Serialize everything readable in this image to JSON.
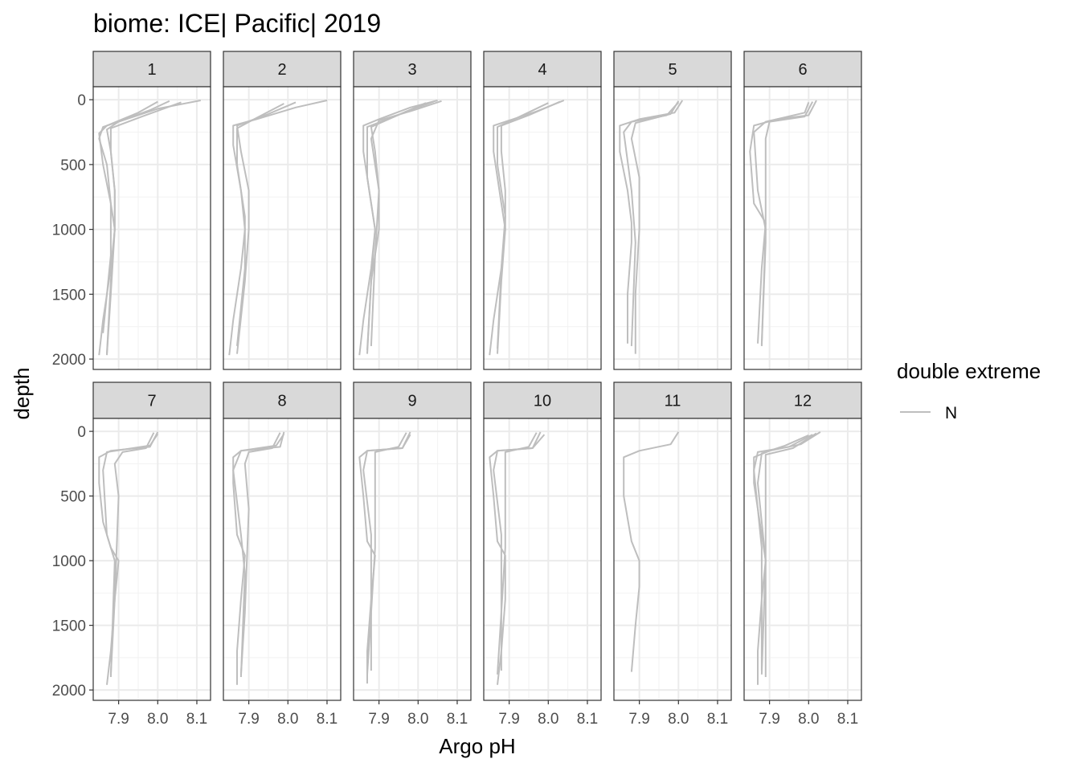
{
  "chart_data": {
    "type": "line",
    "title": "biome: ICE| Pacific| 2019",
    "xlabel": "Argo pH",
    "ylabel": "depth",
    "x_ticks": [
      "7.9",
      "8.0",
      "8.1"
    ],
    "y_ticks": [
      "0",
      "500",
      "1000",
      "1500",
      "2000"
    ],
    "xlim": [
      7.835,
      8.135
    ],
    "ylim": [
      2080,
      -100
    ],
    "y_reversed": true,
    "grid": true,
    "legend": {
      "title": "double extreme",
      "entries": [
        "N"
      ],
      "position": "right",
      "color": "#bebebe"
    },
    "line_color": "#bebebe",
    "facets": [
      {
        "label": "1",
        "profiles": [
          {
            "x": [
              8.03,
              7.98,
              7.9,
              7.86,
              7.85,
              7.87,
              7.88,
              7.89,
              7.88,
              7.86,
              7.85
            ],
            "y": [
              10,
              80,
              170,
              210,
              300,
              500,
              800,
              1000,
              1300,
              1700,
              1970
            ]
          },
          {
            "x": [
              8.11,
              8.0,
              7.9,
              7.87,
              7.88,
              7.89,
              7.89,
              7.88,
              7.87
            ],
            "y": [
              5,
              70,
              170,
              230,
              400,
              700,
              1000,
              1500,
              1970
            ]
          },
          {
            "x": [
              8.06,
              7.96,
              7.88,
              7.88,
              7.89,
              7.89,
              7.88,
              7.87
            ],
            "y": [
              20,
              130,
              220,
              400,
              700,
              1000,
              1400,
              1960
            ]
          },
          {
            "x": [
              8.0,
              7.95,
              7.87,
              7.85,
              7.86,
              7.88,
              7.88,
              7.86
            ],
            "y": [
              15,
              100,
              200,
              260,
              500,
              800,
              1200,
              1800
            ]
          }
        ]
      },
      {
        "label": "2",
        "profiles": [
          {
            "x": [
              8.1,
              8.02,
              7.92,
              7.86,
              7.86,
              7.88,
              7.89,
              7.88,
              7.86,
              7.85
            ],
            "y": [
              5,
              60,
              150,
              200,
              350,
              700,
              1000,
              1300,
              1700,
              1970
            ]
          },
          {
            "x": [
              8.02,
              7.95,
              7.87,
              7.88,
              7.9,
              7.9,
              7.89,
              7.87
            ],
            "y": [
              20,
              110,
              200,
              400,
              700,
              1000,
              1400,
              1960
            ]
          },
          {
            "x": [
              7.99,
              7.92,
              7.87,
              7.87,
              7.89,
              7.89,
              7.87
            ],
            "y": [
              30,
              140,
              220,
              500,
              900,
              1300,
              1900
            ]
          }
        ]
      },
      {
        "label": "3",
        "profiles": [
          {
            "x": [
              8.05,
              7.98,
              7.9,
              7.86,
              7.86,
              7.88,
              7.89,
              7.88,
              7.86,
              7.85
            ],
            "y": [
              5,
              60,
              150,
              200,
              400,
              800,
              1000,
              1300,
              1700,
              1970
            ]
          },
          {
            "x": [
              8.04,
              7.97,
              7.88,
              7.89,
              7.9,
              7.9,
              7.88,
              7.87
            ],
            "y": [
              15,
              90,
              210,
              400,
              700,
              1000,
              1400,
              1960
            ]
          },
          {
            "x": [
              8.02,
              7.94,
              7.87,
              7.87,
              7.89,
              7.88,
              7.87
            ],
            "y": [
              25,
              130,
              210,
              600,
              1000,
              1400,
              1930
            ]
          },
          {
            "x": [
              8.06,
              7.99,
              7.9,
              7.88,
              7.9,
              7.89,
              7.88
            ],
            "y": [
              10,
              80,
              160,
              300,
              700,
              1200,
              1900
            ]
          }
        ]
      },
      {
        "label": "4",
        "profiles": [
          {
            "x": [
              8.04,
              7.97,
              7.9,
              7.86,
              7.86,
              7.88,
              7.89,
              7.88,
              7.86,
              7.85
            ],
            "y": [
              5,
              90,
              160,
              200,
              400,
              800,
              1000,
              1300,
              1700,
              1970
            ]
          },
          {
            "x": [
              8.03,
              7.95,
              7.88,
              7.88,
              7.89,
              7.89,
              7.88,
              7.87
            ],
            "y": [
              15,
              120,
              200,
              400,
              700,
              1000,
              1400,
              1960
            ]
          },
          {
            "x": [
              8.0,
              7.92,
              7.87,
              7.87,
              7.89,
              7.88,
              7.87
            ],
            "y": [
              25,
              140,
              210,
              500,
              900,
              1300,
              1920
            ]
          }
        ]
      },
      {
        "label": "5",
        "profiles": [
          {
            "x": [
              8.01,
              7.99,
              7.9,
              7.85,
              7.85,
              7.87,
              7.88,
              7.88,
              7.87,
              7.87
            ],
            "y": [
              5,
              100,
              150,
              200,
              400,
              700,
              950,
              1100,
              1500,
              1880
            ]
          },
          {
            "x": [
              8.0,
              7.98,
              7.89,
              7.88,
              7.9,
              7.9,
              7.89,
              7.89
            ],
            "y": [
              10,
              110,
              180,
              300,
              600,
              1000,
              1500,
              1960
            ]
          },
          {
            "x": [
              8.0,
              7.97,
              7.88,
              7.86,
              7.88,
              7.89,
              7.88
            ],
            "y": [
              20,
              120,
              170,
              250,
              700,
              1100,
              1900
            ]
          }
        ]
      },
      {
        "label": "6",
        "profiles": [
          {
            "x": [
              8.02,
              8.0,
              7.92,
              7.86,
              7.85,
              7.86,
              7.89,
              7.88,
              7.87
            ],
            "y": [
              5,
              120,
              150,
              200,
              400,
              800,
              950,
              1300,
              1880
            ]
          },
          {
            "x": [
              8.01,
              7.99,
              7.9,
              7.89,
              7.89,
              7.89,
              7.88
            ],
            "y": [
              15,
              130,
              170,
              300,
              700,
              1100,
              1900
            ]
          },
          {
            "x": [
              8.0,
              7.99,
              7.89,
              7.86,
              7.87,
              7.89,
              7.88
            ],
            "y": [
              20,
              100,
              170,
              250,
              700,
              1000,
              1890
            ]
          }
        ]
      },
      {
        "label": "7",
        "profiles": [
          {
            "x": [
              8.0,
              7.98,
              7.88,
              7.85,
              7.85,
              7.86,
              7.88,
              7.9,
              7.89,
              7.88,
              7.87
            ],
            "y": [
              5,
              120,
              150,
              200,
              400,
              700,
              900,
              1000,
              1300,
              1700,
              1960
            ]
          },
          {
            "x": [
              7.99,
              7.97,
              7.91,
              7.89,
              7.9,
              7.89,
              7.88
            ],
            "y": [
              10,
              130,
              160,
              250,
              500,
              1300,
              1880
            ]
          },
          {
            "x": [
              8.0,
              7.98,
              7.87,
              7.86,
              7.87,
              7.89,
              7.88
            ],
            "y": [
              20,
              110,
              160,
              300,
              800,
              1000,
              1900
            ]
          }
        ]
      },
      {
        "label": "8",
        "profiles": [
          {
            "x": [
              7.99,
              7.98,
              7.88,
              7.86,
              7.86,
              7.87,
              7.89,
              7.88,
              7.87,
              7.87
            ],
            "y": [
              5,
              120,
              150,
              200,
              400,
              800,
              960,
              1300,
              1700,
              1960
            ]
          },
          {
            "x": [
              7.98,
              7.96,
              7.9,
              7.89,
              7.9,
              7.89,
              7.88
            ],
            "y": [
              10,
              130,
              160,
              250,
              600,
              1400,
              1880
            ]
          },
          {
            "x": [
              7.99,
              7.97,
              7.88,
              7.86,
              7.88,
              7.89,
              7.88
            ],
            "y": [
              20,
              110,
              150,
              300,
              800,
              1100,
              1900
            ]
          }
        ]
      },
      {
        "label": "9",
        "profiles": [
          {
            "x": [
              7.98,
              7.96,
              7.87,
              7.85,
              7.86,
              7.87,
              7.89,
              7.88,
              7.87,
              7.87
            ],
            "y": [
              5,
              130,
              150,
              200,
              500,
              850,
              960,
              1300,
              1700,
              1950
            ]
          },
          {
            "x": [
              7.97,
              7.95,
              7.89,
              7.89,
              7.89,
              7.88,
              7.87
            ],
            "y": [
              10,
              120,
              160,
              300,
              900,
              1400,
              1880
            ]
          },
          {
            "x": [
              7.98,
              7.96,
              7.87,
              7.86,
              7.88,
              7.88
            ],
            "y": [
              25,
              130,
              150,
              300,
              800,
              1850
            ]
          }
        ]
      },
      {
        "label": "10",
        "profiles": [
          {
            "x": [
              7.98,
              7.96,
              7.87,
              7.85,
              7.86,
              7.87,
              7.89,
              7.89,
              7.88,
              7.87
            ],
            "y": [
              5,
              130,
              150,
              200,
              500,
              850,
              960,
              1300,
              1700,
              1960
            ]
          },
          {
            "x": [
              7.97,
              7.95,
              7.89,
              7.89,
              7.89,
              7.88,
              7.87
            ],
            "y": [
              10,
              120,
              160,
              300,
              900,
              1400,
              1880
            ]
          },
          {
            "x": [
              7.99,
              7.96,
              7.87,
              7.86,
              7.88,
              7.88
            ],
            "y": [
              25,
              130,
              150,
              300,
              800,
              1850
            ]
          }
        ]
      },
      {
        "label": "11",
        "profiles": [
          {
            "x": [
              8.0,
              7.98,
              7.9,
              7.86,
              7.86,
              7.88,
              7.9,
              7.9,
              7.89,
              7.88
            ],
            "y": [
              5,
              100,
              150,
              200,
              500,
              850,
              1000,
              1200,
              1500,
              1860
            ]
          }
        ]
      },
      {
        "label": "12",
        "profiles": [
          {
            "x": [
              8.03,
              7.98,
              7.9,
              7.86,
              7.86,
              7.88,
              7.89,
              7.88,
              7.87,
              7.87
            ],
            "y": [
              5,
              100,
              150,
              200,
              400,
              800,
              1000,
              1300,
              1700,
              1960
            ]
          },
          {
            "x": [
              8.02,
              7.96,
              7.89,
              7.89,
              7.89,
              7.88
            ],
            "y": [
              15,
              130,
              180,
              300,
              1000,
              1880
            ]
          },
          {
            "x": [
              8.01,
              7.95,
              7.87,
              7.86,
              7.88,
              7.88
            ],
            "y": [
              25,
              120,
              160,
              300,
              900,
              1850
            ]
          },
          {
            "x": [
              8.0,
              7.94,
              7.88,
              7.87,
              7.89,
              7.89
            ],
            "y": [
              30,
              110,
              170,
              400,
              1000,
              1900
            ]
          }
        ]
      }
    ]
  }
}
